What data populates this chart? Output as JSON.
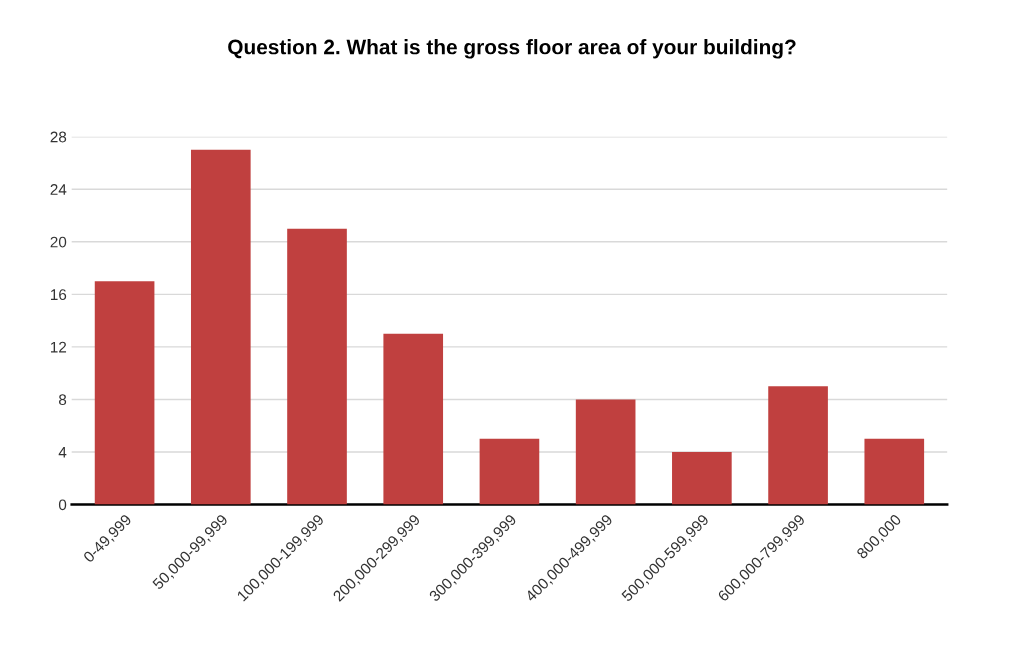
{
  "chart_data": {
    "type": "bar",
    "title": "Question 2. What is the gross floor area of your building?",
    "categories": [
      "0-49,999",
      "50,000-99,999",
      "100,000-199,999",
      "200,000-299,999",
      "300,000-399,999",
      "400,000-499,999",
      "500,000-599,999",
      "600,000-799,999",
      "800,000"
    ],
    "values": [
      17,
      27,
      21,
      13,
      5,
      8,
      4,
      9,
      5
    ],
    "color": "#c0403f",
    "ylim": [
      0,
      28
    ],
    "yticks": [
      0,
      4,
      8,
      12,
      16,
      20,
      24,
      28
    ],
    "grid": "y"
  }
}
